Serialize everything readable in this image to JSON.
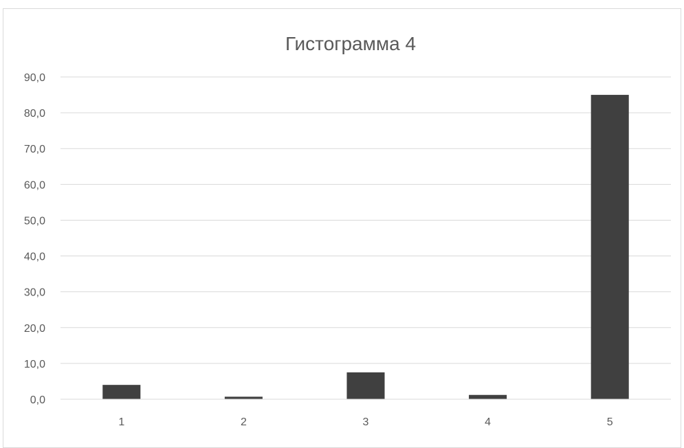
{
  "chart_data": {
    "type": "bar",
    "title": "Гистограмма 4",
    "xlabel": "",
    "ylabel": "",
    "categories": [
      "1",
      "2",
      "3",
      "4",
      "5"
    ],
    "values": [
      4.0,
      0.7,
      7.5,
      1.2,
      85.0
    ],
    "ylim": [
      0,
      90
    ],
    "yticks": [
      "0,0",
      "10,0",
      "20,0",
      "30,0",
      "40,0",
      "50,0",
      "60,0",
      "70,0",
      "80,0",
      "90,0"
    ],
    "grid": true,
    "legend": "none",
    "bar_color": "#404040",
    "grid_color": "#d9d9d9"
  }
}
